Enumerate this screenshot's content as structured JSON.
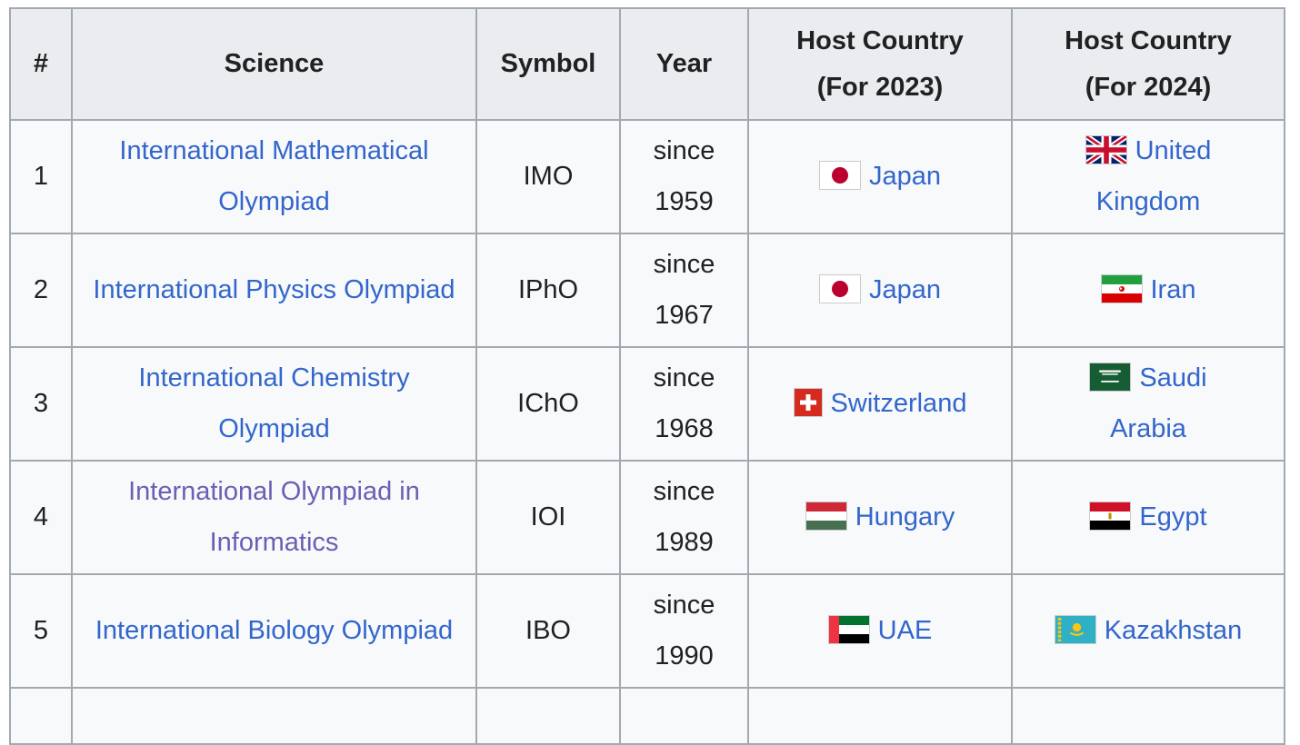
{
  "colors": {
    "link": "#3366cc",
    "visited_link": "#6a5fb4",
    "border": "#a2a9b1",
    "header_bg": "#eaecf0",
    "row_bg": "#f8f9fa",
    "text": "#202122"
  },
  "table": {
    "name": "international-science-olympiads",
    "columns": [
      {
        "key": "num",
        "label": "#"
      },
      {
        "key": "science",
        "label": "Science"
      },
      {
        "key": "symbol",
        "label": "Symbol"
      },
      {
        "key": "year",
        "label": "Year"
      },
      {
        "key": "host2023",
        "label": "Host Country\n(For 2023)"
      },
      {
        "key": "host2024",
        "label": "Host Country\n(For 2024)"
      }
    ],
    "rows": [
      {
        "num": "1",
        "science": {
          "text": "International Mathematical Olympiad",
          "visited": false
        },
        "symbol": "IMO",
        "year": "since\n1959",
        "host_2023": {
          "country": "Japan",
          "flag": "japan-flag-icon",
          "wrap": false
        },
        "host_2024": {
          "country": "United Kingdom",
          "flag": "united-kingdom-flag-icon",
          "wrap": true
        }
      },
      {
        "num": "2",
        "science": {
          "text": "International Physics Olympiad",
          "visited": false
        },
        "symbol": "IPhO",
        "year": "since\n1967",
        "host_2023": {
          "country": "Japan",
          "flag": "japan-flag-icon",
          "wrap": false
        },
        "host_2024": {
          "country": "Iran",
          "flag": "iran-flag-icon",
          "wrap": false
        }
      },
      {
        "num": "3",
        "science": {
          "text": "International Chemistry Olympiad",
          "visited": false
        },
        "symbol": "IChO",
        "year": "since\n1968",
        "host_2023": {
          "country": "Switzerland",
          "flag": "switzerland-flag-icon",
          "wrap": false
        },
        "host_2024": {
          "country": "Saudi Arabia",
          "flag": "saudi-arabia-flag-icon",
          "wrap": true
        }
      },
      {
        "num": "4",
        "science": {
          "text": "International Olympiad in Informatics",
          "visited": true
        },
        "symbol": "IOI",
        "year": "since\n1989",
        "host_2023": {
          "country": "Hungary",
          "flag": "hungary-flag-icon",
          "wrap": false
        },
        "host_2024": {
          "country": "Egypt",
          "flag": "egypt-flag-icon",
          "wrap": false
        }
      },
      {
        "num": "5",
        "science": {
          "text": "International Biology Olympiad",
          "visited": false
        },
        "symbol": "IBO",
        "year": "since\n1990",
        "host_2023": {
          "country": "UAE",
          "flag": "uae-flag-icon",
          "wrap": false
        },
        "host_2024": {
          "country": "Kazakhstan",
          "flag": "kazakhstan-flag-icon",
          "wrap": false
        }
      },
      {
        "partial": true
      }
    ]
  }
}
